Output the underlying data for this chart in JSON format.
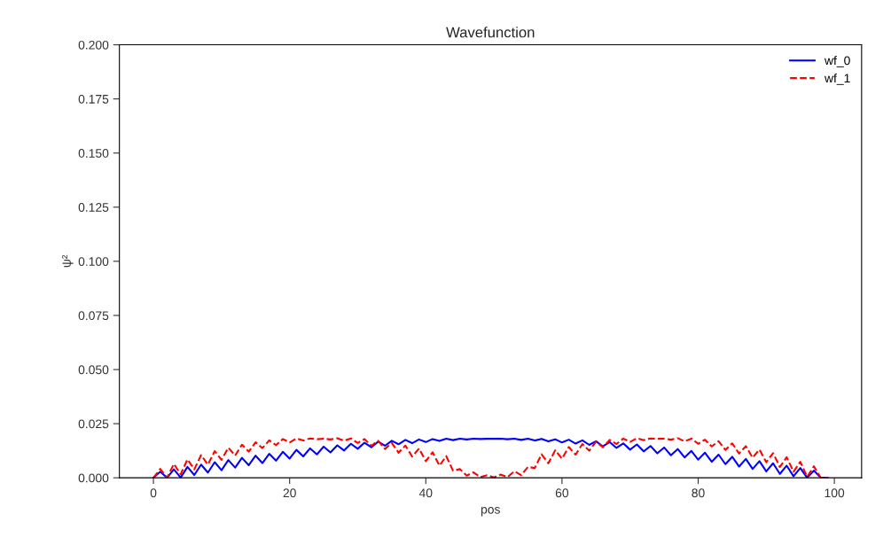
{
  "chart_data": {
    "type": "line",
    "title": "Wavefunction",
    "xlabel": "pos",
    "ylabel": "ψ²",
    "x": [
      0,
      1,
      2,
      3,
      4,
      5,
      6,
      7,
      8,
      9,
      10,
      11,
      12,
      13,
      14,
      15,
      16,
      17,
      18,
      19,
      20,
      21,
      22,
      23,
      24,
      25,
      26,
      27,
      28,
      29,
      30,
      31,
      32,
      33,
      34,
      35,
      36,
      37,
      38,
      39,
      40,
      41,
      42,
      43,
      44,
      45,
      46,
      47,
      48,
      49,
      50,
      51,
      52,
      53,
      54,
      55,
      56,
      57,
      58,
      59,
      60,
      61,
      62,
      63,
      64,
      65,
      66,
      67,
      68,
      69,
      70,
      71,
      72,
      73,
      74,
      75,
      76,
      77,
      78,
      79,
      80,
      81,
      82,
      83,
      84,
      85,
      86,
      87,
      88,
      89,
      90,
      91,
      92,
      93,
      94,
      95,
      96,
      97,
      98,
      99
    ],
    "series": [
      {
        "name": "wf_0",
        "color": "#0000ff",
        "line_style": "solid",
        "values": [
          0,
          0.0028,
          0,
          0.0039,
          0.0001,
          0.005,
          0.0013,
          0.0061,
          0.0024,
          0.0072,
          0.0035,
          0.0082,
          0.0047,
          0.0092,
          0.0058,
          0.0102,
          0.0068,
          0.0111,
          0.0079,
          0.012,
          0.0089,
          0.0129,
          0.0099,
          0.0136,
          0.0108,
          0.0144,
          0.0117,
          0.015,
          0.0126,
          0.0157,
          0.0134,
          0.0162,
          0.0141,
          0.0167,
          0.0148,
          0.0171,
          0.0155,
          0.0175,
          0.016,
          0.0177,
          0.0165,
          0.0179,
          0.017,
          0.0181,
          0.0174,
          0.0181,
          0.0177,
          0.0181,
          0.0179,
          0.018,
          0.018,
          0.0181,
          0.0178,
          0.0181,
          0.0175,
          0.0181,
          0.0172,
          0.018,
          0.0168,
          0.0178,
          0.0163,
          0.0176,
          0.0158,
          0.0173,
          0.0152,
          0.0169,
          0.0145,
          0.0165,
          0.0138,
          0.0159,
          0.013,
          0.0154,
          0.0122,
          0.0147,
          0.0113,
          0.014,
          0.0104,
          0.0133,
          0.0094,
          0.0124,
          0.0084,
          0.0116,
          0.0074,
          0.0107,
          0.0063,
          0.0097,
          0.0052,
          0.0087,
          0.0041,
          0.0077,
          0.003,
          0.0067,
          0.0018,
          0.0056,
          0.0007,
          0.0045,
          0,
          0.0033,
          0,
          0
        ]
      },
      {
        "name": "wf_1",
        "color": "#ff0000",
        "line_style": "dashed",
        "values": [
          0,
          0.0041,
          0,
          0.0064,
          0.0016,
          0.0085,
          0.0039,
          0.0105,
          0.0061,
          0.0123,
          0.0083,
          0.0139,
          0.0103,
          0.0153,
          0.0121,
          0.0164,
          0.0137,
          0.0173,
          0.0151,
          0.0179,
          0.0163,
          0.0182,
          0.0172,
          0.0182,
          0.0178,
          0.0181,
          0.0177,
          0.0183,
          0.0171,
          0.0182,
          0.0161,
          0.0179,
          0.0148,
          0.0171,
          0.0133,
          0.0161,
          0.0116,
          0.0149,
          0.0098,
          0.0135,
          0.0077,
          0.0118,
          0.0056,
          0.01,
          0.0033,
          0.004,
          0.001,
          0.0025,
          0.0003,
          0.0012,
          0.0002,
          0.0015,
          0.0003,
          0.003,
          0.0012,
          0.005,
          0.0045,
          0.0109,
          0.0067,
          0.0127,
          0.0088,
          0.0142,
          0.0107,
          0.0156,
          0.0125,
          0.0167,
          0.0141,
          0.0175,
          0.0156,
          0.0181,
          0.0166,
          0.0183,
          0.0174,
          0.0182,
          0.018,
          0.0181,
          0.0176,
          0.0183,
          0.0168,
          0.0181,
          0.0157,
          0.0176,
          0.0145,
          0.0169,
          0.0129,
          0.0159,
          0.0112,
          0.0146,
          0.0093,
          0.0131,
          0.0072,
          0.0114,
          0.005,
          0.0095,
          0.0028,
          0.0074,
          0.0005,
          0.0053,
          0,
          0
        ]
      }
    ],
    "xlim": [
      -5,
      104
    ],
    "xticks": [
      0,
      20,
      40,
      60,
      80,
      100
    ],
    "ylim": [
      0,
      0.2
    ],
    "yticks": [
      {
        "value": 0,
        "label": "0.000"
      },
      {
        "value": 0.025,
        "label": "0.025"
      },
      {
        "value": 0.05,
        "label": "0.050"
      },
      {
        "value": 0.075,
        "label": "0.075"
      },
      {
        "value": 0.1,
        "label": "0.100"
      },
      {
        "value": 0.125,
        "label": "0.125"
      },
      {
        "value": 0.15,
        "label": "0.150"
      },
      {
        "value": 0.175,
        "label": "0.175"
      },
      {
        "value": 0.2,
        "label": "0.200"
      }
    ],
    "grid": false,
    "legend": "top right"
  }
}
